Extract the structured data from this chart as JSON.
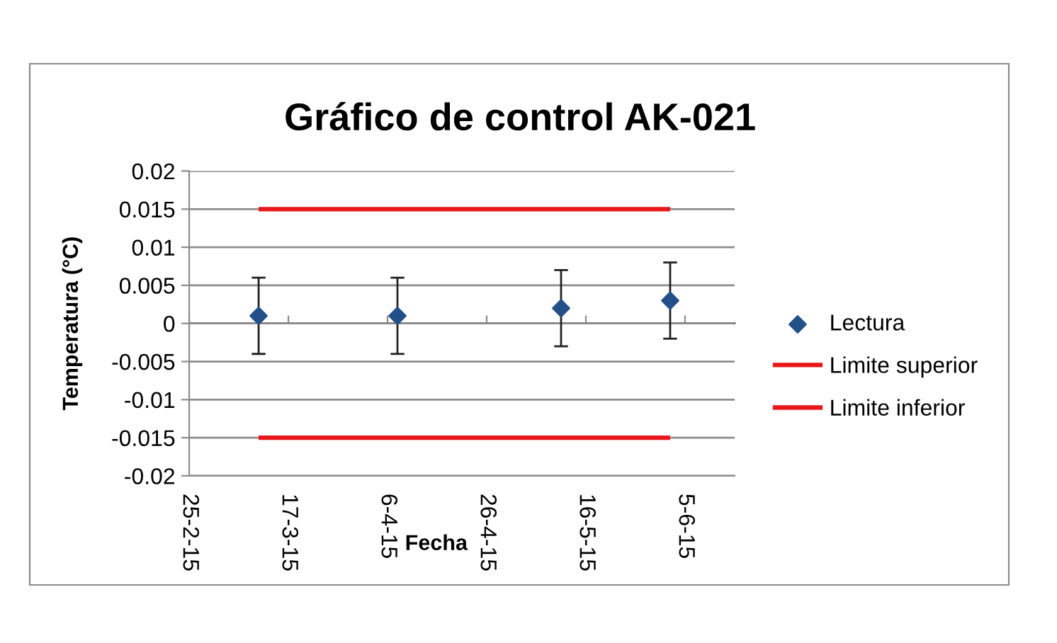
{
  "chart_data": {
    "type": "scatter",
    "title": "Gráfico de control AK-021",
    "xlabel": "Fecha",
    "ylabel": "Temperatura (°C)",
    "xlim": [
      "2015-02-25",
      "2015-06-15"
    ],
    "xticks": [
      {
        "value": "2015-02-25",
        "label": "25-2-15"
      },
      {
        "value": "2015-03-17",
        "label": "17-3-15"
      },
      {
        "value": "2015-04-06",
        "label": "6-4-15"
      },
      {
        "value": "2015-04-26",
        "label": "26-4-15"
      },
      {
        "value": "2015-05-16",
        "label": "16-5-15"
      },
      {
        "value": "2015-06-05",
        "label": "5-6-15"
      }
    ],
    "ylim": [
      -0.02,
      0.02
    ],
    "yticks": [
      -0.02,
      -0.015,
      -0.01,
      -0.005,
      0,
      0.005,
      0.01,
      0.015,
      0.02
    ],
    "grid": "y",
    "legend": "right",
    "series": [
      {
        "name": "Lectura",
        "color": "#24508a",
        "marker": "diamond",
        "x": [
          "2015-03-11",
          "2015-04-08",
          "2015-05-11",
          "2015-06-02"
        ],
        "values": [
          0.001,
          0.001,
          0.002,
          0.003
        ],
        "errors": [
          0.005,
          0.005,
          0.005,
          0.005
        ]
      },
      {
        "name": "Limite superior",
        "type": "line",
        "color": "#e8171b",
        "marker": "none",
        "line_style": "solid",
        "x": [
          "2015-03-11",
          "2015-04-08",
          "2015-05-11",
          "2015-06-02"
        ],
        "values": [
          0.015,
          0.015,
          0.015,
          0.015
        ]
      },
      {
        "name": "Limite inferior",
        "type": "line",
        "color": "#e8171b",
        "marker": "none",
        "line_style": "solid",
        "x": [
          "2015-03-11",
          "2015-04-08",
          "2015-05-11",
          "2015-06-02"
        ],
        "values": [
          -0.015,
          -0.015,
          -0.015,
          -0.015
        ]
      }
    ]
  }
}
